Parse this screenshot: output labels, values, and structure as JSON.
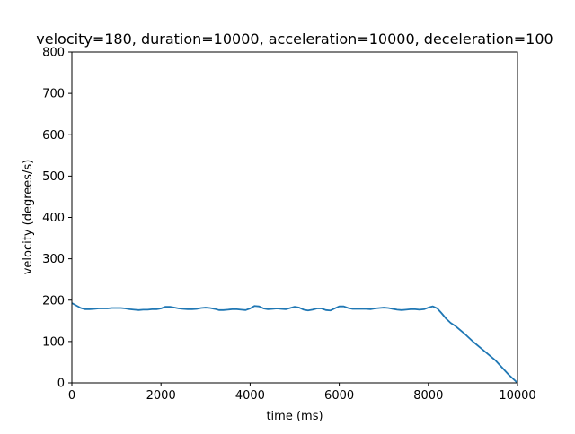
{
  "chart_data": {
    "type": "line",
    "title": "velocity=180, duration=10000, acceleration=10000, deceleration=100",
    "xlabel": "time (ms)",
    "ylabel": "velocity (degrees/s)",
    "xlim": [
      0,
      10000
    ],
    "ylim": [
      0,
      800
    ],
    "xticks": [
      0,
      2000,
      4000,
      6000,
      8000,
      10000
    ],
    "yticks": [
      0,
      100,
      200,
      300,
      400,
      500,
      600,
      700,
      800
    ],
    "grid": false,
    "series": [
      {
        "color": "#1f77b4",
        "x": [
          0,
          100,
          200,
          300,
          400,
          500,
          600,
          700,
          800,
          900,
          1000,
          1100,
          1200,
          1300,
          1400,
          1500,
          1600,
          1700,
          1800,
          1900,
          2000,
          2100,
          2200,
          2300,
          2400,
          2500,
          2600,
          2700,
          2800,
          2900,
          3000,
          3100,
          3200,
          3300,
          3400,
          3500,
          3600,
          3700,
          3800,
          3900,
          4000,
          4100,
          4200,
          4300,
          4400,
          4500,
          4600,
          4700,
          4800,
          4900,
          5000,
          5100,
          5200,
          5300,
          5400,
          5500,
          5600,
          5700,
          5800,
          5900,
          6000,
          6100,
          6200,
          6300,
          6400,
          6500,
          6600,
          6700,
          6800,
          6900,
          7000,
          7100,
          7200,
          7300,
          7400,
          7500,
          7600,
          7700,
          7800,
          7900,
          8000,
          8100,
          8200,
          8300,
          8400,
          8500,
          8600,
          8800,
          9000,
          9200,
          9500,
          9800,
          10000
        ],
        "y": [
          193,
          187,
          181,
          178,
          178,
          179,
          180,
          180,
          180,
          181,
          181,
          181,
          180,
          178,
          177,
          176,
          177,
          177,
          178,
          178,
          180,
          184,
          184,
          182,
          180,
          179,
          178,
          178,
          179,
          181,
          182,
          181,
          179,
          176,
          176,
          177,
          178,
          178,
          177,
          176,
          180,
          186,
          185,
          180,
          178,
          179,
          180,
          179,
          178,
          181,
          184,
          182,
          177,
          175,
          177,
          180,
          180,
          176,
          175,
          180,
          185,
          185,
          181,
          179,
          179,
          179,
          179,
          178,
          180,
          181,
          182,
          181,
          179,
          177,
          176,
          177,
          178,
          178,
          177,
          178,
          182,
          185,
          180,
          168,
          155,
          145,
          138,
          120,
          100,
          82,
          55,
          20,
          0
        ]
      }
    ]
  }
}
